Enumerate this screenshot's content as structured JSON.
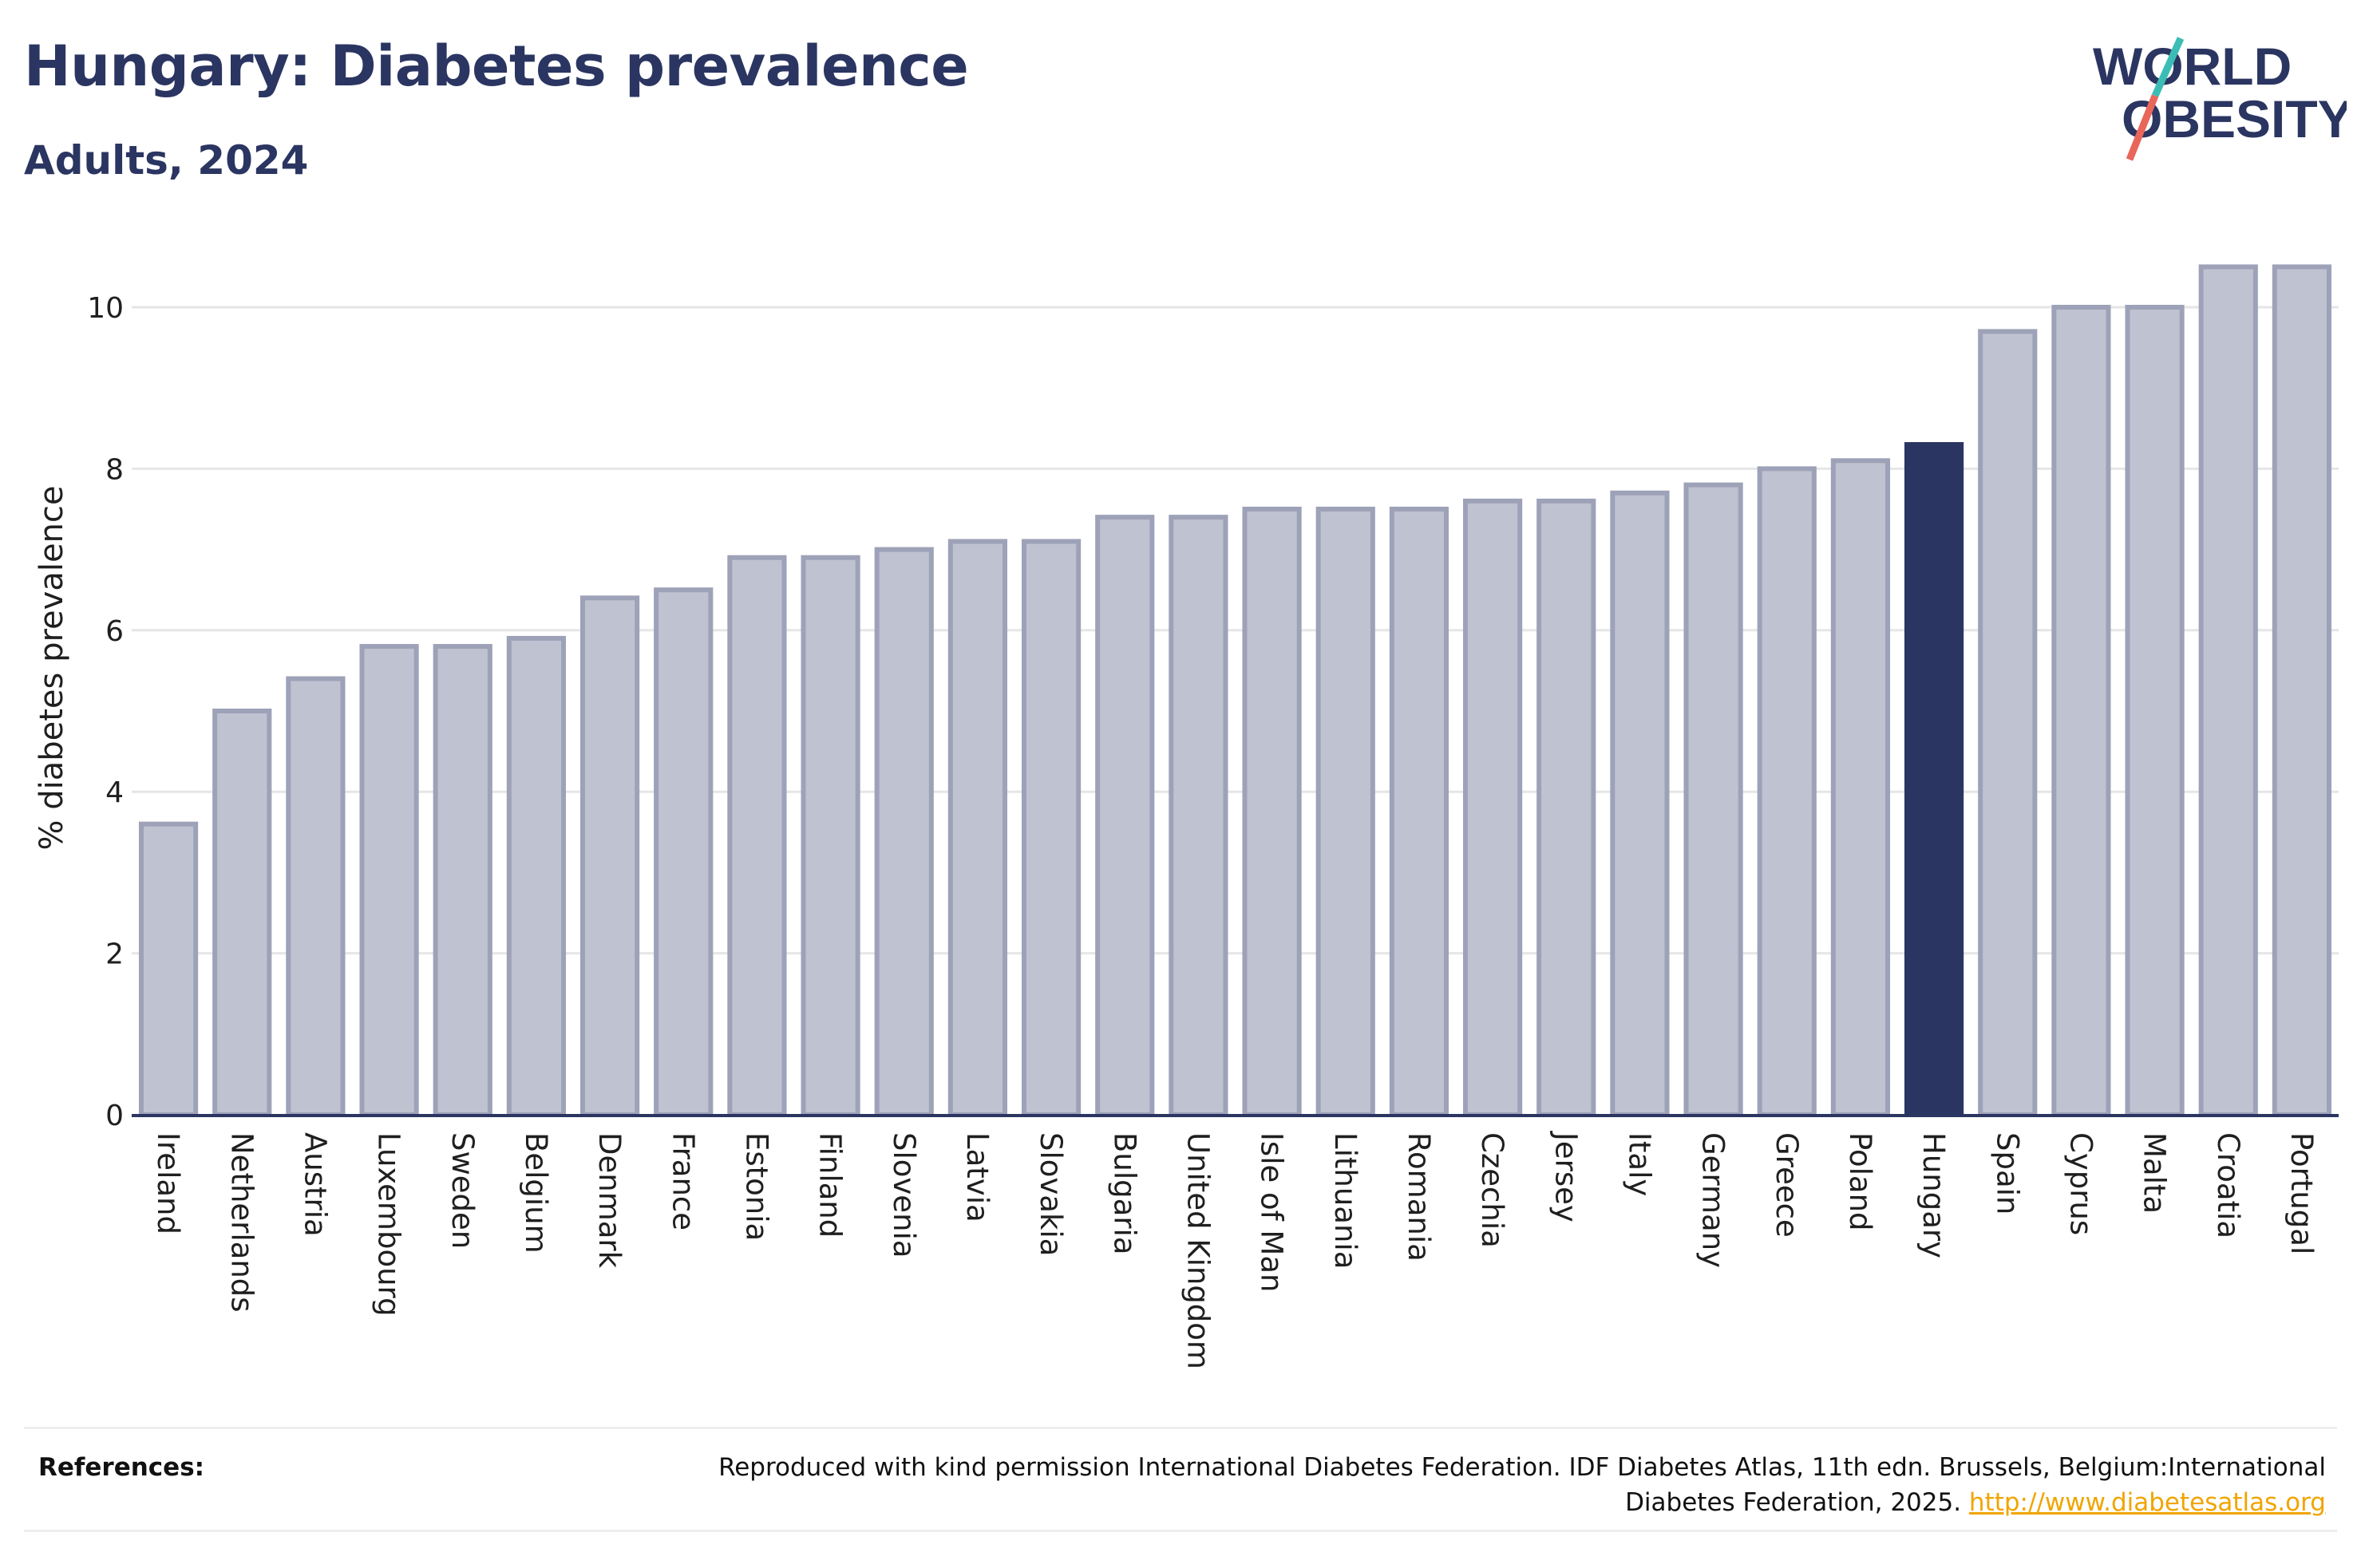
{
  "header": {
    "title": "Hungary: Diabetes prevalence",
    "subtitle": "Adults, 2024"
  },
  "logo": {
    "line1": "WORLD",
    "line2": "OBESITY",
    "colors": {
      "text": "#2b3561",
      "slash_teal": "#3bbdb6",
      "slash_coral": "#e8665a"
    }
  },
  "chart_data": {
    "type": "bar",
    "ylabel": "% diabetes prevalence",
    "xlabel": "",
    "ylim": [
      0,
      10.6
    ],
    "yticks": [
      0,
      2,
      4,
      6,
      8,
      10
    ],
    "grid": true,
    "highlight": "Hungary",
    "colors": {
      "bar": "#bfc2d0",
      "bar_outline": "#9da2b8",
      "highlight": "#2b3561",
      "grid": "#e6e6e6",
      "axis": "#2b3561"
    },
    "categories": [
      "Ireland",
      "Netherlands",
      "Austria",
      "Luxembourg",
      "Sweden",
      "Belgium",
      "Denmark",
      "France",
      "Estonia",
      "Finland",
      "Slovenia",
      "Latvia",
      "Slovakia",
      "Bulgaria",
      "United Kingdom",
      "Isle of Man",
      "Lithuania",
      "Romania",
      "Czechia",
      "Jersey",
      "Italy",
      "Germany",
      "Greece",
      "Poland",
      "Hungary",
      "Spain",
      "Cyprus",
      "Malta",
      "Croatia",
      "Portugal"
    ],
    "values": [
      3.6,
      5.0,
      5.4,
      5.8,
      5.8,
      5.9,
      6.4,
      6.5,
      6.9,
      6.9,
      7.0,
      7.1,
      7.1,
      7.4,
      7.4,
      7.5,
      7.5,
      7.5,
      7.6,
      7.6,
      7.7,
      7.8,
      8.0,
      8.1,
      8.3,
      9.7,
      10.0,
      10.0,
      10.5,
      10.5
    ]
  },
  "references": {
    "label": "References:",
    "text": "Reproduced with kind permission International Diabetes Federation. IDF Diabetes Atlas, 11th edn. Brussels, Belgium:International Diabetes Federation, 2025.",
    "link": "http://www.diabetesatlas.org"
  }
}
